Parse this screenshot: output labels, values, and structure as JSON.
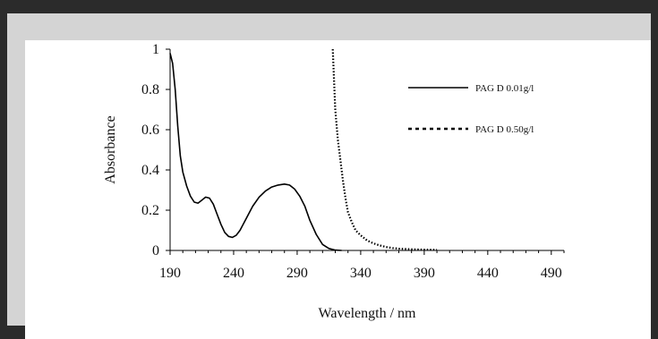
{
  "chart_data": {
    "type": "line",
    "xlabel": "Wavelength / nm",
    "ylabel": "Absorbance",
    "xlim": [
      190,
      500
    ],
    "ylim": [
      0,
      1
    ],
    "x_ticks": [
      190,
      240,
      290,
      340,
      390,
      440,
      490
    ],
    "y_ticks": [
      0,
      0.2,
      0.4,
      0.6,
      0.8,
      1
    ],
    "y_tick_labels": [
      "0",
      "0.2",
      "0.4",
      "0.6",
      "0.8",
      "1"
    ],
    "grid": false,
    "legend_position": "top-right",
    "series": [
      {
        "name": "PAG D  0.01g/l",
        "style": "solid",
        "color": "#000000",
        "x": [
          190,
          192,
          194,
          196,
          198,
          200,
          203,
          206,
          209,
          212,
          215,
          218,
          221,
          224,
          227,
          230,
          233,
          236,
          239,
          242,
          245,
          250,
          255,
          260,
          265,
          270,
          275,
          280,
          284,
          288,
          292,
          296,
          300,
          305,
          310,
          315,
          320,
          325
        ],
        "y": [
          0.98,
          0.93,
          0.8,
          0.62,
          0.47,
          0.39,
          0.32,
          0.27,
          0.24,
          0.235,
          0.25,
          0.265,
          0.26,
          0.23,
          0.18,
          0.13,
          0.09,
          0.07,
          0.065,
          0.075,
          0.1,
          0.16,
          0.22,
          0.265,
          0.295,
          0.315,
          0.325,
          0.33,
          0.325,
          0.305,
          0.27,
          0.22,
          0.15,
          0.08,
          0.03,
          0.01,
          0.002,
          0
        ]
      },
      {
        "name": "PAG D  0.50g/l",
        "style": "dotted",
        "color": "#000000",
        "x": [
          318,
          319,
          320,
          322,
          324,
          326,
          328,
          330,
          333,
          336,
          340,
          345,
          350,
          355,
          360,
          365,
          370,
          380,
          390,
          400
        ],
        "y": [
          1.0,
          0.85,
          0.7,
          0.55,
          0.45,
          0.35,
          0.26,
          0.19,
          0.14,
          0.1,
          0.075,
          0.05,
          0.035,
          0.025,
          0.017,
          0.012,
          0.009,
          0.006,
          0.004,
          0.003
        ]
      }
    ]
  }
}
